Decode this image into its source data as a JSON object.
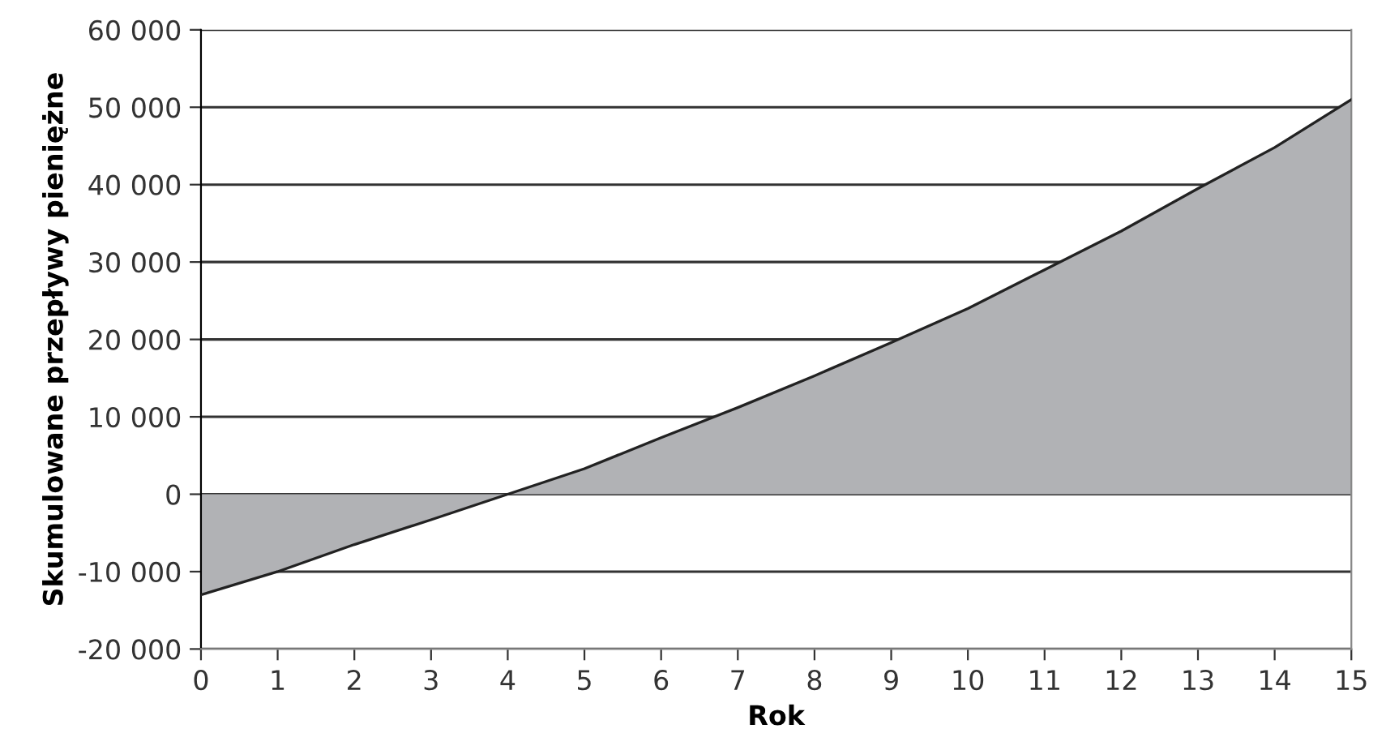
{
  "chart_data": {
    "type": "area",
    "xlabel": "Rok",
    "ylabel": "Skumulowane przepływy pieniężne",
    "x": [
      0,
      1,
      2,
      3,
      4,
      5,
      6,
      7,
      8,
      9,
      10,
      11,
      12,
      13,
      14,
      15
    ],
    "series": [
      {
        "color": "#b1b2b5",
        "values": [
          -13000,
          -10000,
          -6500,
          -3300,
          0,
          3300,
          7300,
          11200,
          15300,
          19600,
          24000,
          29000,
          34000,
          39500,
          44800,
          51000
        ]
      }
    ],
    "xlim": [
      0,
      15
    ],
    "xticks": [
      0,
      1,
      2,
      3,
      4,
      5,
      6,
      7,
      8,
      9,
      10,
      11,
      12,
      13,
      14,
      15
    ],
    "ylim": [
      -20000,
      60000
    ],
    "yticks": [
      {
        "value": -20000,
        "label": "-20 000"
      },
      {
        "value": -10000,
        "label": "-10 000"
      },
      0,
      {
        "value": 10000,
        "label": "10 000"
      },
      {
        "value": 20000,
        "label": "20 000"
      },
      {
        "value": 30000,
        "label": "30 000"
      },
      {
        "value": 40000,
        "label": "40 000"
      },
      {
        "value": 50000,
        "label": "50 000"
      },
      {
        "value": 60000,
        "label": "60 000"
      }
    ],
    "grid": "y"
  }
}
